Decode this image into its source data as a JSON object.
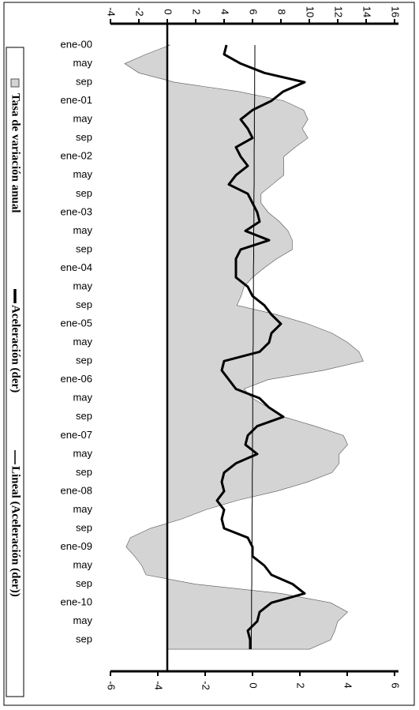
{
  "chart_data": {
    "type": "combo",
    "categories": [
      "ene-00",
      null,
      "may",
      null,
      "sep",
      null,
      "ene-01",
      null,
      "may",
      null,
      "sep",
      null,
      "ene-02",
      null,
      "may",
      null,
      "sep",
      null,
      "ene-03",
      null,
      "may",
      null,
      "sep",
      null,
      "ene-04",
      null,
      "may",
      null,
      "sep",
      null,
      "ene-05",
      null,
      "may",
      null,
      "sep",
      null,
      "ene-06",
      null,
      "may",
      null,
      "sep",
      null,
      "ene-07",
      null,
      "may",
      null,
      "sep",
      null,
      "ene-08",
      null,
      "may",
      null,
      "sep",
      null,
      "ene-09",
      null,
      "may",
      null,
      "sep",
      null,
      "ene-10",
      null,
      "may",
      null,
      "sep",
      null
    ],
    "series": [
      {
        "name": "Tasa de variación anual",
        "type": "area",
        "color": "#d4d4d4",
        "values": [
          0.2,
          -1.5,
          -3.0,
          -2.0,
          0.5,
          5.0,
          8.2,
          9.6,
          9.9,
          9.5,
          9.9,
          9.0,
          8.2,
          8.2,
          8.2,
          7.4,
          6.6,
          6.6,
          7.1,
          7.9,
          8.5,
          8.8,
          8.8,
          7.7,
          6.8,
          6.0,
          5.4,
          5.2,
          4.9,
          7.7,
          9.9,
          11.6,
          12.7,
          13.5,
          13.8,
          11.0,
          7.1,
          5.4,
          6.0,
          7.1,
          8.2,
          10.4,
          12.4,
          12.7,
          12.1,
          12.1,
          11.6,
          9.9,
          7.7,
          4.9,
          2.7,
          1.0,
          -1.2,
          -2.6,
          -2.9,
          -2.3,
          -1.8,
          -1.5,
          2.0,
          8.0,
          11.5,
          12.7,
          12.0,
          11.8,
          11.5,
          10.0
        ]
      },
      {
        "name": "Aceleración (der)",
        "type": "line",
        "axis": "y2",
        "color": "#000000",
        "width": 3,
        "values": [
          -1.1,
          -1.2,
          -0.5,
          0.5,
          2.2,
          1.3,
          0.8,
          0.0,
          -0.5,
          -0.2,
          0.0,
          -0.7,
          -0.5,
          -0.2,
          -0.7,
          -1.0,
          -0.2,
          0.0,
          0.2,
          0.3,
          -0.3,
          0.7,
          -0.5,
          -0.7,
          -0.7,
          -0.7,
          -0.2,
          0.0,
          0.5,
          0.8,
          1.2,
          0.8,
          0.7,
          0.3,
          -1.2,
          -1.3,
          -1.0,
          -0.7,
          0.3,
          0.7,
          1.3,
          0.2,
          -0.2,
          -0.3,
          0.2,
          -0.7,
          -1.2,
          -1.3,
          -1.2,
          -1.5,
          -1.2,
          -1.3,
          -1.2,
          -0.2,
          0.0,
          0.0,
          0.5,
          0.8,
          1.7,
          2.2,
          0.8,
          0.3,
          0.2,
          -0.2,
          -0.1,
          -0.1
        ]
      },
      {
        "name": "Lineal (Aceleración (der))",
        "type": "line",
        "axis": "y2",
        "color": "#000000",
        "width": 1,
        "values": [
          0.1,
          0.1,
          0.1,
          0.09,
          0.09,
          0.09,
          0.09,
          0.08,
          0.08,
          0.08,
          0.08,
          0.07,
          0.07,
          0.07,
          0.07,
          0.07,
          0.06,
          0.06,
          0.06,
          0.06,
          0.05,
          0.05,
          0.05,
          0.05,
          0.04,
          0.04,
          0.04,
          0.04,
          0.04,
          0.03,
          0.03,
          0.03,
          0.03,
          0.02,
          0.02,
          0.02,
          0.02,
          0.01,
          0.01,
          0.01,
          0.01,
          0.01,
          0.0,
          0.0,
          0.0,
          0.0,
          -0.01,
          -0.01,
          -0.01,
          -0.01,
          -0.02,
          -0.02,
          -0.02,
          -0.02,
          -0.02,
          -0.03,
          -0.03,
          -0.03,
          -0.03,
          -0.04,
          -0.04,
          -0.04,
          -0.04,
          -0.05,
          -0.05,
          -0.05
        ]
      }
    ],
    "ylim": [
      -4,
      16
    ],
    "yticks": [
      -4,
      -2,
      0,
      2,
      4,
      6,
      8,
      10,
      12,
      14,
      16
    ],
    "y2lim": [
      -6,
      6
    ],
    "y2ticks": [
      -6,
      -4,
      -2,
      0,
      2,
      4,
      6
    ],
    "legend": "left"
  }
}
